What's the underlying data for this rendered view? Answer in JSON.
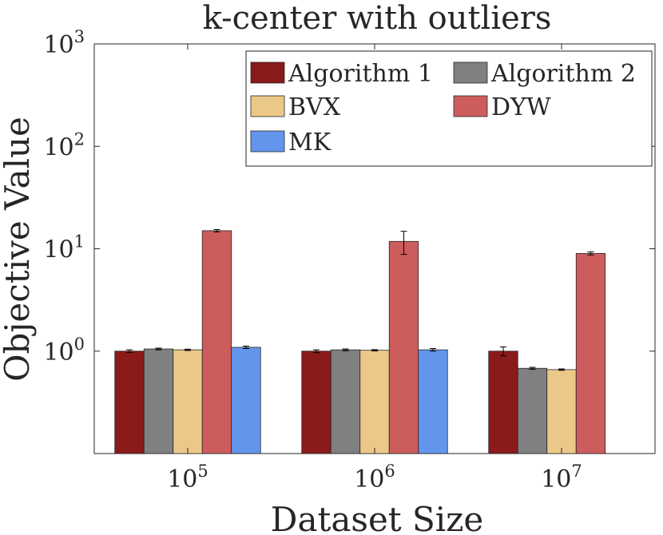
{
  "chart_data": {
    "type": "bar",
    "title": "k-center with outliers",
    "xlabel": "Dataset Size",
    "ylabel": "Objective Value",
    "y_scale": "log",
    "ylim": [
      0.1,
      1000
    ],
    "y_ticks": [
      {
        "value": 1,
        "base": "10",
        "exp": "0"
      },
      {
        "value": 10,
        "base": "10",
        "exp": "1"
      },
      {
        "value": 100,
        "base": "10",
        "exp": "2"
      },
      {
        "value": 1000,
        "base": "10",
        "exp": "3"
      }
    ],
    "categories": [
      {
        "base": "10",
        "exp": "5"
      },
      {
        "base": "10",
        "exp": "6"
      },
      {
        "base": "10",
        "exp": "7"
      }
    ],
    "legend_position": "top-right",
    "grid": false,
    "series": [
      {
        "name": "Algorithm 1",
        "color": "#8b1a1a",
        "values": [
          1.0,
          1.0,
          1.0
        ],
        "errors": [
          0.03,
          0.03,
          0.1
        ]
      },
      {
        "name": "Algorithm 2",
        "color": "#808080",
        "values": [
          1.05,
          1.03,
          0.68
        ],
        "errors": [
          0.02,
          0.02,
          0.015
        ]
      },
      {
        "name": "BVX",
        "color": "#ebc887",
        "values": [
          1.03,
          1.02,
          0.66
        ],
        "errors": [
          0.015,
          0.015,
          0.01
        ]
      },
      {
        "name": "DYW",
        "color": "#cd5c5c",
        "values": [
          15.0,
          11.8,
          9.0
        ],
        "errors": [
          0.4,
          3.0,
          0.3
        ]
      },
      {
        "name": "MK",
        "color": "#6495ed",
        "values": [
          1.09,
          1.03,
          null
        ],
        "errors": [
          0.03,
          0.03,
          null
        ]
      }
    ]
  }
}
